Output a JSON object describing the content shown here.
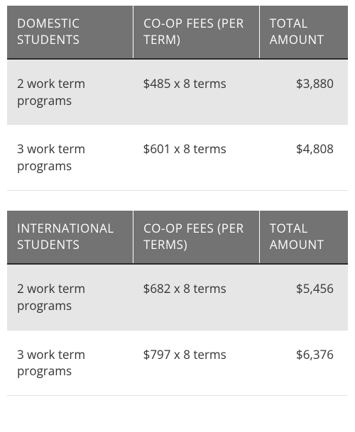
{
  "tables": [
    {
      "headers": {
        "c1": "DOMESTIC STUDENTS",
        "c2": "CO-OP FEES (PER TERM)",
        "c3": "TOTAL AMOUNT"
      },
      "rows": [
        {
          "c1": "2 work term programs",
          "c2": "$485 x 8 terms",
          "c3": "$3,880"
        },
        {
          "c1": "3 work term programs",
          "c2": "$601 x 8 terms",
          "c3": "$4,808"
        }
      ]
    },
    {
      "headers": {
        "c1": "INTERNATIONAL STUDENTS",
        "c2": "CO-OP FEES (PER TERMS)",
        "c3": "TOTAL AMOUNT"
      },
      "rows": [
        {
          "c1": "2 work term programs",
          "c2": "$682 x 8 terms",
          "c3": "$5,456"
        },
        {
          "c1": "3 work term programs",
          "c2": "$797 x 8 terms",
          "c3": "$6,376"
        }
      ]
    }
  ],
  "style": {
    "header_bg": "#737373",
    "header_fg": "#ffffff",
    "row_alt_bg": "#e6e6e6",
    "row_plain_bg": "#ffffff",
    "text_color": "#333333",
    "header_border_bottom": "#2b2b2b",
    "row_border": "#e3e3e3",
    "font_size_header": 17,
    "font_size_body": 17,
    "col_widths_pct": [
      37,
      37,
      26
    ]
  }
}
